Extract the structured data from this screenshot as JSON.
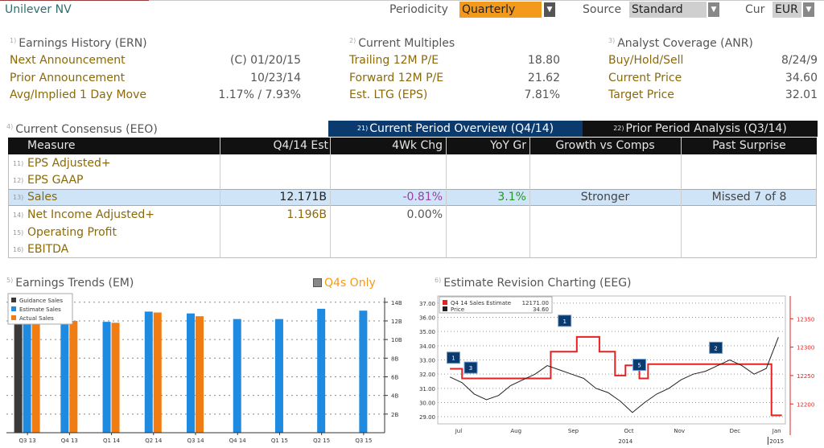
{
  "header": {
    "security": "Unilever NV",
    "periodicity_label": "Periodicity",
    "periodicity_value": "Quarterly",
    "source_label": "Source",
    "source_value": "Standard",
    "cur_label": "Cur",
    "cur_value": "EUR"
  },
  "earnings_history": {
    "num": "1)",
    "title": "Earnings History (ERN)",
    "rows": [
      {
        "label": "Next Announcement",
        "value": "(C)  01/20/15"
      },
      {
        "label": "Prior Announcement",
        "value": "10/23/14"
      },
      {
        "label": "Avg/Implied 1 Day Move",
        "value": "1.17% / 7.93%"
      }
    ]
  },
  "current_multiples": {
    "num": "2)",
    "title": "Current Multiples",
    "rows": [
      {
        "label": "Trailing 12M P/E",
        "value": "18.80"
      },
      {
        "label": "Forward 12M P/E",
        "value": "21.62"
      },
      {
        "label": "Est. LTG (EPS)",
        "value": "7.81%"
      }
    ]
  },
  "analyst_coverage": {
    "num": "3)",
    "title": "Analyst Coverage (ANR)",
    "rows": [
      {
        "label": "Buy/Hold/Sell",
        "value": "8/24/9"
      },
      {
        "label": "Current Price",
        "value": "34.60"
      },
      {
        "label": "Target Price",
        "value": "32.01"
      }
    ]
  },
  "consensus": {
    "num": "4)",
    "title": "Current Consensus (EEO)",
    "tabs": [
      {
        "num": "21)",
        "label": "Current Period Overview (Q4/14)"
      },
      {
        "num": "22)",
        "label": "Prior Period Analysis (Q3/14)"
      }
    ],
    "columns": [
      "Measure",
      "Q4/14 Est",
      "4Wk Chg",
      "YoY Gr",
      "Growth vs Comps",
      "Past Surprise"
    ],
    "rows": [
      {
        "num": "11)",
        "measure": "EPS Adjusted+",
        "est": "",
        "chg": "",
        "yoy": "",
        "comps": "",
        "surprise": ""
      },
      {
        "num": "12)",
        "measure": "EPS GAAP",
        "est": "",
        "chg": "",
        "yoy": "",
        "comps": "",
        "surprise": ""
      },
      {
        "num": "13)",
        "measure": "Sales",
        "est": "12.171B",
        "chg": "-0.81%",
        "yoy": "3.1%",
        "comps": "Stronger",
        "surprise": "Missed 7 of 8"
      },
      {
        "num": "14)",
        "measure": "Net Income Adjusted+",
        "est": "1.196B",
        "chg": "0.00%",
        "yoy": "",
        "comps": "",
        "surprise": ""
      },
      {
        "num": "15)",
        "measure": "Operating Profit",
        "est": "",
        "chg": "",
        "yoy": "",
        "comps": "",
        "surprise": ""
      },
      {
        "num": "16)",
        "measure": "EBITDA",
        "est": "",
        "chg": "",
        "yoy": "",
        "comps": "",
        "surprise": ""
      }
    ]
  },
  "earnings_trends": {
    "num": "5)",
    "title": "Earnings Trends (EM)",
    "toggle_label": "Q4s Only"
  },
  "estimate_revision": {
    "num": "6)",
    "title": "Estimate Revision Charting (EEG)"
  },
  "colors": {
    "guidance": "#3a3a3a",
    "estimate": "#1e8be0",
    "actual": "#f07c12",
    "accent_orange": "#f39a1d",
    "tab_active": "#0a3a6e",
    "tab_inactive": "#111111",
    "estimate_line": "#e32222",
    "price_line": "#222222"
  },
  "chart_data": [
    {
      "type": "bar",
      "categories": [
        "Q3 13",
        "Q4 13",
        "Q1 14",
        "Q2 14",
        "Q3 14",
        "Q4 14",
        "Q1 15",
        "Q2 15",
        "Q3 15"
      ],
      "series": [
        {
          "name": "Guidance Sales",
          "values": [
            12.5,
            null,
            null,
            null,
            null,
            null,
            null,
            null,
            null
          ]
        },
        {
          "name": "Estimate Sales",
          "values": [
            12.4,
            12.3,
            11.9,
            13.0,
            12.8,
            12.2,
            12.2,
            13.3,
            13.1
          ]
        },
        {
          "name": "Actual Sales",
          "values": [
            12.5,
            12.0,
            11.8,
            12.9,
            12.5,
            null,
            null,
            null,
            null
          ]
        }
      ],
      "ytick_labels": [
        "2B",
        "4B",
        "6B",
        "8B",
        "10B",
        "12B",
        "14B"
      ],
      "ylim": [
        0,
        14.5
      ]
    },
    {
      "type": "line",
      "legend": [
        {
          "name": "Q4 14 Sales Estimate",
          "value": "12171.00"
        },
        {
          "name": "Price",
          "value": "34.60"
        }
      ],
      "x_labels": [
        "Jul",
        "Aug",
        "Sep",
        "Oct",
        "Nov",
        "Dec",
        "Jan"
      ],
      "x_year_labels": [
        "2014",
        "2015"
      ],
      "left_axis": {
        "ticks": [
          "29.00",
          "30.00",
          "31.00",
          "32.00",
          "33.00",
          "34.00",
          "35.00",
          "36.00",
          "37.00"
        ],
        "ylim": [
          28.5,
          37.5
        ]
      },
      "right_axis": {
        "ticks": [
          "12200",
          "12250",
          "12300",
          "12350"
        ],
        "ylim": [
          12165,
          12390
        ]
      },
      "markers": [
        "1",
        "3",
        "1",
        "5",
        "2"
      ],
      "series": [
        {
          "name": "Q4 14 Sales Estimate",
          "axis": "right",
          "x": [
            "2014-07-01",
            "2014-07-08",
            "2014-08-25",
            "2014-08-28",
            "2014-09-10",
            "2014-09-12",
            "2014-09-22",
            "2014-09-25",
            "2014-10-01",
            "2014-10-04",
            "2014-10-08",
            "2014-10-10",
            "2014-10-14",
            "2014-10-18",
            "2014-10-20",
            "2014-10-23",
            "2014-11-30",
            "2014-12-31",
            "2015-01-02",
            "2015-01-08"
          ],
          "values": [
            12262,
            12245,
            12245,
            12292,
            12292,
            12318,
            12318,
            12292,
            12292,
            12250,
            12250,
            12268,
            12268,
            12245,
            12245,
            12270,
            12270,
            12270,
            12180,
            12180
          ]
        },
        {
          "name": "Price",
          "axis": "left",
          "x": [
            "2014-07-01",
            "2014-07-08",
            "2014-07-15",
            "2014-07-22",
            "2014-07-29",
            "2014-08-05",
            "2014-08-12",
            "2014-08-19",
            "2014-08-26",
            "2014-09-02",
            "2014-09-09",
            "2014-09-16",
            "2014-09-23",
            "2014-09-30",
            "2014-10-07",
            "2014-10-14",
            "2014-10-21",
            "2014-10-28",
            "2014-11-04",
            "2014-11-11",
            "2014-11-18",
            "2014-11-25",
            "2014-12-02",
            "2014-12-09",
            "2014-12-16",
            "2014-12-23",
            "2014-12-30",
            "2015-01-06"
          ],
          "values": [
            31.8,
            31.4,
            30.6,
            30.2,
            30.5,
            31.2,
            31.6,
            32.0,
            32.6,
            32.3,
            32.0,
            31.7,
            31.0,
            30.7,
            30.1,
            29.3,
            30.0,
            30.6,
            31.0,
            31.6,
            32.0,
            32.2,
            32.6,
            33.0,
            32.6,
            32.0,
            32.4,
            34.6
          ]
        }
      ]
    }
  ]
}
